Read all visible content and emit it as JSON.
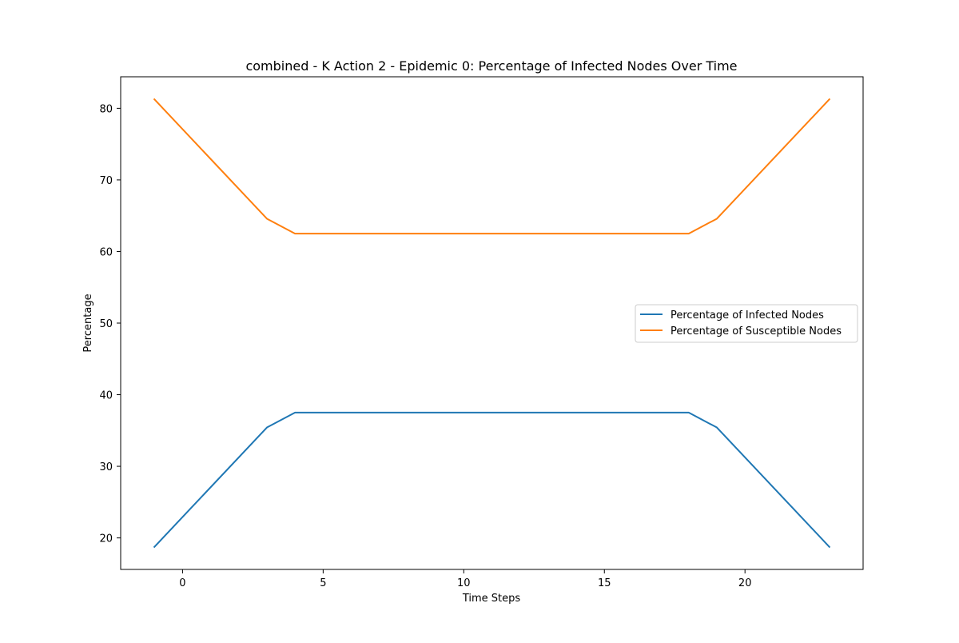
{
  "chart_data": {
    "type": "line",
    "title": "combined - K Action 2 - Epidemic 0: Percentage of Infected Nodes Over Time",
    "xlabel": "Time Steps",
    "ylabel": "Percentage",
    "xlim": [
      -2.2,
      24.2
    ],
    "ylim": [
      15.6,
      84.4
    ],
    "xticks": [
      0,
      5,
      10,
      15,
      20
    ],
    "yticks": [
      20,
      30,
      40,
      50,
      60,
      70,
      80
    ],
    "grid": false,
    "legend_position": "center-right",
    "x": [
      -1,
      3,
      4,
      5,
      6,
      7,
      8,
      9,
      10,
      11,
      12,
      13,
      14,
      15,
      16,
      17,
      18,
      19,
      23
    ],
    "series": [
      {
        "name": "Percentage of Infected Nodes",
        "color": "#1f77b4",
        "values": [
          18.75,
          35.42,
          37.5,
          37.5,
          37.5,
          37.5,
          37.5,
          37.5,
          37.5,
          37.5,
          37.5,
          37.5,
          37.5,
          37.5,
          37.5,
          37.5,
          37.5,
          35.42,
          18.75
        ]
      },
      {
        "name": "Percentage of Susceptible Nodes",
        "color": "#ff7f0e",
        "values": [
          81.25,
          64.58,
          62.5,
          62.5,
          62.5,
          62.5,
          62.5,
          62.5,
          62.5,
          62.5,
          62.5,
          62.5,
          62.5,
          62.5,
          62.5,
          62.5,
          62.5,
          64.58,
          81.25
        ]
      }
    ]
  }
}
